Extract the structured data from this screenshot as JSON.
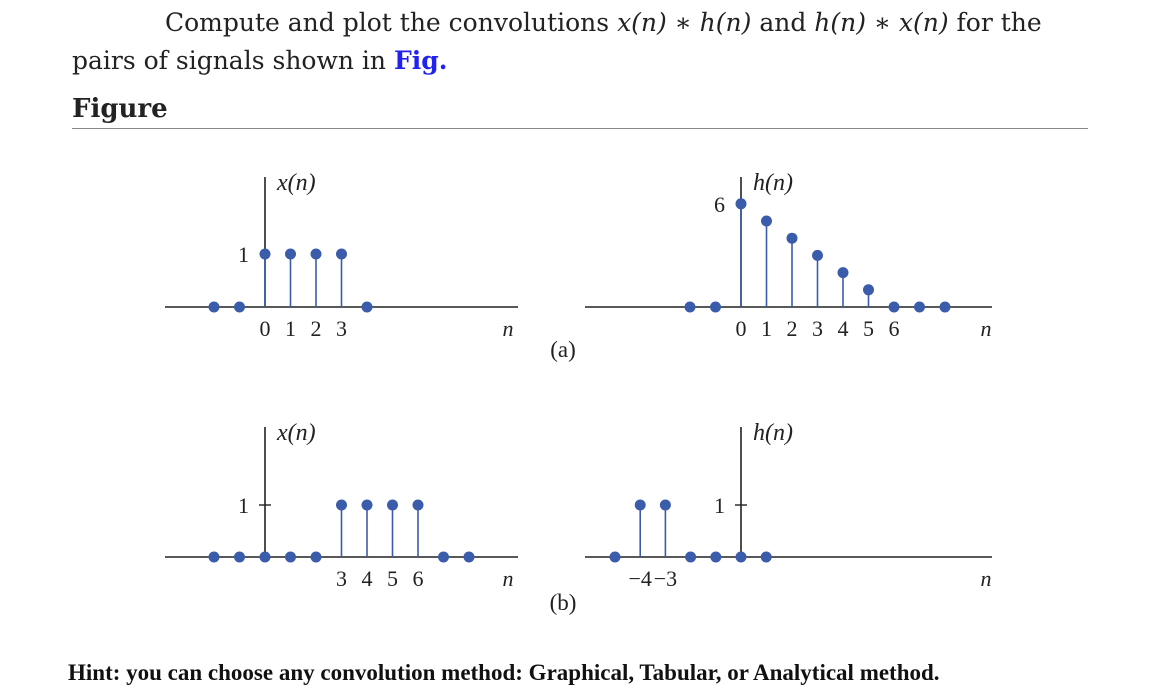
{
  "problem": {
    "text_before": "Compute and plot the convolutions ",
    "expr1": "x(n) ∗ h(n)",
    "text_and": " and ",
    "expr2": "h(n) ∗ x(n)",
    "text_for": " for the",
    "line2": "pairs of signals shown in ",
    "link": "Fig."
  },
  "figure_heading": "Figure",
  "panels": {
    "a": {
      "label": "(a)",
      "x": {
        "title": "x(n)",
        "n_values": [
          -2,
          -1,
          0,
          1,
          2,
          3,
          4
        ],
        "amplitudes": [
          0,
          0,
          1,
          1,
          1,
          1,
          0
        ],
        "y_tick_label": "1",
        "x_tick_labels": [
          "0",
          "1",
          "2",
          "3"
        ],
        "axis_var": "n"
      },
      "h": {
        "title": "h(n)",
        "n_values": [
          -2,
          -1,
          0,
          1,
          2,
          3,
          4,
          5,
          6,
          7,
          8
        ],
        "amplitudes": [
          0,
          0,
          6,
          5,
          4,
          3,
          2,
          1,
          0,
          0,
          0
        ],
        "y_tick_label": "6",
        "x_tick_labels": [
          "0",
          "1",
          "2",
          "3",
          "4",
          "5",
          "6"
        ],
        "axis_var": "n"
      }
    },
    "b": {
      "label": "(b)",
      "x": {
        "title": "x(n)",
        "n_values": [
          -2,
          -1,
          0,
          1,
          2,
          3,
          4,
          5,
          6,
          7,
          8
        ],
        "amplitudes": [
          0,
          0,
          0,
          0,
          0,
          1,
          1,
          1,
          1,
          0,
          0
        ],
        "y_tick_label": "1",
        "x_tick_labels": [
          "3",
          "4",
          "5",
          "6"
        ],
        "axis_var": "n"
      },
      "h": {
        "title": "h(n)",
        "n_values": [
          -5,
          -4,
          -3,
          -2,
          -1,
          0,
          1
        ],
        "amplitudes": [
          0,
          1,
          1,
          0,
          0,
          0,
          0
        ],
        "y_tick_label": "1",
        "x_tick_labels": [
          "−4",
          "−3"
        ],
        "axis_var": "n"
      }
    }
  },
  "hint": "Hint: you can choose any convolution method: Graphical, Tabular, or Analytical method.",
  "colors": {
    "stem": "#3b5bab",
    "axis": "#222222"
  }
}
